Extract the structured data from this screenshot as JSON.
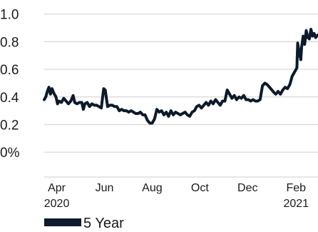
{
  "chart_data": {
    "type": "line",
    "y_ticks": [
      "1.0",
      "0.8",
      "0.6",
      "0.4",
      "0.2",
      "0%"
    ],
    "y_tick_values": [
      1.0,
      0.8,
      0.6,
      0.4,
      0.2,
      0.0
    ],
    "ylim": [
      -0.18,
      1.05
    ],
    "x_ticks": [
      {
        "line1": "Apr",
        "line2": "2020",
        "date": "2020-04-01"
      },
      {
        "line1": "Jun",
        "line2": "",
        "date": "2020-06-01"
      },
      {
        "line1": "Aug",
        "line2": "",
        "date": "2020-08-01"
      },
      {
        "line1": "Oct",
        "line2": "",
        "date": "2020-10-01"
      },
      {
        "line1": "Dec",
        "line2": "",
        "date": "2020-12-01"
      },
      {
        "line1": "Feb",
        "line2": "2021",
        "date": "2021-02-01"
      }
    ],
    "xlim": [
      "2020-03-16",
      "2021-03-01"
    ],
    "grid": true,
    "legend_position": "bottom-left",
    "series": [
      {
        "name": "5 Year",
        "color": "#0d1a2b",
        "points": [
          [
            "2020-03-16",
            0.38
          ],
          [
            "2020-03-18",
            0.4
          ],
          [
            "2020-03-20",
            0.44
          ],
          [
            "2020-03-22",
            0.47
          ],
          [
            "2020-03-24",
            0.42
          ],
          [
            "2020-03-26",
            0.46
          ],
          [
            "2020-03-28",
            0.43
          ],
          [
            "2020-03-31",
            0.4
          ],
          [
            "2020-04-02",
            0.35
          ],
          [
            "2020-04-04",
            0.37
          ],
          [
            "2020-04-07",
            0.36
          ],
          [
            "2020-04-10",
            0.39
          ],
          [
            "2020-04-13",
            0.37
          ],
          [
            "2020-04-16",
            0.35
          ],
          [
            "2020-04-19",
            0.37
          ],
          [
            "2020-04-22",
            0.41
          ],
          [
            "2020-04-24",
            0.36
          ],
          [
            "2020-04-27",
            0.35
          ],
          [
            "2020-04-30",
            0.36
          ],
          [
            "2020-05-03",
            0.36
          ],
          [
            "2020-05-05",
            0.31
          ],
          [
            "2020-05-07",
            0.35
          ],
          [
            "2020-05-10",
            0.36
          ],
          [
            "2020-05-13",
            0.33
          ],
          [
            "2020-05-16",
            0.35
          ],
          [
            "2020-05-19",
            0.34
          ],
          [
            "2020-05-22",
            0.34
          ],
          [
            "2020-05-25",
            0.33
          ],
          [
            "2020-05-28",
            0.32
          ],
          [
            "2020-05-31",
            0.46
          ],
          [
            "2020-06-02",
            0.45
          ],
          [
            "2020-06-05",
            0.33
          ],
          [
            "2020-06-08",
            0.34
          ],
          [
            "2020-06-11",
            0.34
          ],
          [
            "2020-06-14",
            0.33
          ],
          [
            "2020-06-17",
            0.33
          ],
          [
            "2020-06-20",
            0.3
          ],
          [
            "2020-06-23",
            0.31
          ],
          [
            "2020-06-26",
            0.3
          ],
          [
            "2020-06-29",
            0.3
          ],
          [
            "2020-07-02",
            0.29
          ],
          [
            "2020-07-05",
            0.3
          ],
          [
            "2020-07-08",
            0.29
          ],
          [
            "2020-07-11",
            0.28
          ],
          [
            "2020-07-14",
            0.28
          ],
          [
            "2020-07-17",
            0.29
          ],
          [
            "2020-07-20",
            0.27
          ],
          [
            "2020-07-23",
            0.27
          ],
          [
            "2020-07-26",
            0.23
          ],
          [
            "2020-07-29",
            0.21
          ],
          [
            "2020-08-01",
            0.21
          ],
          [
            "2020-08-04",
            0.24
          ],
          [
            "2020-08-07",
            0.31
          ],
          [
            "2020-08-10",
            0.29
          ],
          [
            "2020-08-13",
            0.3
          ],
          [
            "2020-08-16",
            0.27
          ],
          [
            "2020-08-19",
            0.29
          ],
          [
            "2020-08-22",
            0.26
          ],
          [
            "2020-08-25",
            0.3
          ],
          [
            "2020-08-28",
            0.27
          ],
          [
            "2020-08-31",
            0.29
          ],
          [
            "2020-09-03",
            0.28
          ],
          [
            "2020-09-06",
            0.27
          ],
          [
            "2020-09-09",
            0.28
          ],
          [
            "2020-09-12",
            0.29
          ],
          [
            "2020-09-15",
            0.27
          ],
          [
            "2020-09-18",
            0.26
          ],
          [
            "2020-09-21",
            0.29
          ],
          [
            "2020-09-24",
            0.3
          ],
          [
            "2020-09-27",
            0.33
          ],
          [
            "2020-09-30",
            0.34
          ],
          [
            "2020-10-03",
            0.32
          ],
          [
            "2020-10-06",
            0.34
          ],
          [
            "2020-10-09",
            0.36
          ],
          [
            "2020-10-12",
            0.34
          ],
          [
            "2020-10-15",
            0.37
          ],
          [
            "2020-10-18",
            0.35
          ],
          [
            "2020-10-21",
            0.38
          ],
          [
            "2020-10-24",
            0.36
          ],
          [
            "2020-10-27",
            0.34
          ],
          [
            "2020-10-30",
            0.37
          ],
          [
            "2020-11-02",
            0.37
          ],
          [
            "2020-11-05",
            0.45
          ],
          [
            "2020-11-08",
            0.42
          ],
          [
            "2020-11-11",
            0.39
          ],
          [
            "2020-11-14",
            0.41
          ],
          [
            "2020-11-17",
            0.38
          ],
          [
            "2020-11-20",
            0.4
          ],
          [
            "2020-11-23",
            0.39
          ],
          [
            "2020-11-26",
            0.41
          ],
          [
            "2020-11-29",
            0.38
          ],
          [
            "2020-12-02",
            0.38
          ],
          [
            "2020-12-05",
            0.37
          ],
          [
            "2020-12-08",
            0.38
          ],
          [
            "2020-12-11",
            0.37
          ],
          [
            "2020-12-14",
            0.37
          ],
          [
            "2020-12-17",
            0.38
          ],
          [
            "2020-12-20",
            0.48
          ],
          [
            "2020-12-23",
            0.5
          ],
          [
            "2020-12-26",
            0.49
          ],
          [
            "2020-12-29",
            0.47
          ],
          [
            "2021-01-01",
            0.45
          ],
          [
            "2021-01-04",
            0.43
          ],
          [
            "2021-01-06",
            0.42
          ],
          [
            "2021-01-09",
            0.44
          ],
          [
            "2021-01-12",
            0.42
          ],
          [
            "2021-01-15",
            0.45
          ],
          [
            "2021-01-18",
            0.47
          ],
          [
            "2021-01-21",
            0.46
          ],
          [
            "2021-01-24",
            0.49
          ],
          [
            "2021-01-27",
            0.55
          ],
          [
            "2021-01-29",
            0.57
          ],
          [
            "2021-01-31",
            0.59
          ],
          [
            "2021-02-02",
            0.61
          ],
          [
            "2021-02-03",
            0.79
          ],
          [
            "2021-02-05",
            0.72
          ],
          [
            "2021-02-07",
            0.67
          ],
          [
            "2021-02-08",
            0.76
          ],
          [
            "2021-02-10",
            0.84
          ],
          [
            "2021-02-12",
            0.78
          ],
          [
            "2021-02-14",
            0.88
          ],
          [
            "2021-02-16",
            0.83
          ],
          [
            "2021-02-18",
            0.82
          ],
          [
            "2021-02-20",
            0.89
          ],
          [
            "2021-02-22",
            0.84
          ],
          [
            "2021-02-24",
            0.86
          ],
          [
            "2021-02-26",
            0.83
          ],
          [
            "2021-03-01",
            0.85
          ]
        ]
      }
    ]
  }
}
